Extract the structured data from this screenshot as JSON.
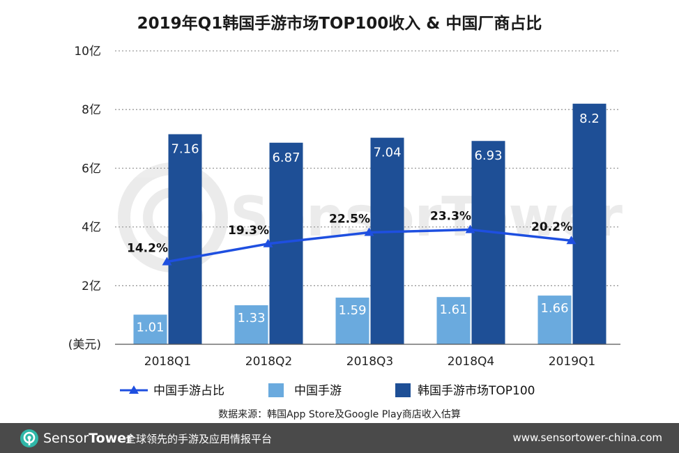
{
  "chart_data": {
    "type": "bar",
    "title": "2019年Q1韩国手游市场TOP100收入 & 中国厂商占比",
    "unit_label": "(美元)",
    "categories": [
      "2018Q1",
      "2018Q2",
      "2018Q3",
      "2018Q4",
      "2019Q1"
    ],
    "y_ticks": [
      {
        "value": 2,
        "label": "2亿"
      },
      {
        "value": 4,
        "label": "4亿"
      },
      {
        "value": 6,
        "label": "6亿"
      },
      {
        "value": 8,
        "label": "8亿"
      },
      {
        "value": 10,
        "label": "10亿"
      }
    ],
    "ylim": [
      0,
      10
    ],
    "grid": true,
    "series": [
      {
        "name": "中国手游",
        "kind": "bar",
        "color": "#6aaade",
        "values": [
          1.01,
          1.33,
          1.59,
          1.61,
          1.66
        ],
        "labels": [
          "1.01",
          "1.33",
          "1.59",
          "1.61",
          "1.66"
        ]
      },
      {
        "name": "韩国手游市场TOP100",
        "kind": "bar",
        "color": "#1e4f96",
        "values": [
          7.16,
          6.87,
          7.04,
          6.93,
          8.2
        ],
        "labels": [
          "7.16",
          "6.87",
          "7.04",
          "6.93",
          "8.2"
        ]
      },
      {
        "name": "中国手游占比",
        "kind": "line",
        "color": "#1e4fe0",
        "values": [
          14.2,
          19.3,
          22.5,
          23.3,
          20.2
        ],
        "labels": [
          "14.2%",
          "19.3%",
          "22.5%",
          "23.3%",
          "20.2%"
        ]
      }
    ],
    "legend_position": "bottom"
  },
  "source_note": "数据来源：韩国App Store及Google Play商店收入估算",
  "watermark": "SensorTower",
  "footer": {
    "brand_a": "Sensor",
    "brand_b": "Tower",
    "tagline": "全球领先的手游及应用情报平台",
    "website": "www.sensortower-china.com"
  },
  "colors": {
    "china_bar": "#6aaade",
    "korea_bar": "#1e4f96",
    "share_line": "#1e4fe0",
    "footer_bg": "#4a4a4a",
    "brand_teal": "#2fb7a8"
  }
}
